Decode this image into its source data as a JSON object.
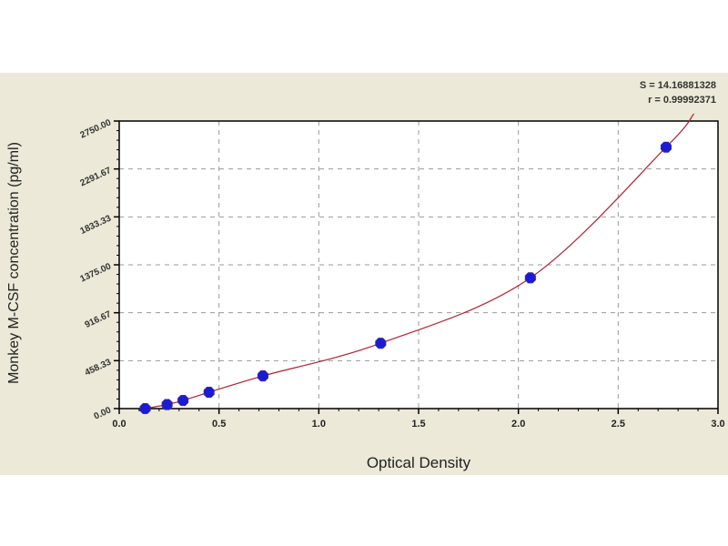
{
  "chart_data": {
    "type": "scatter",
    "title": "",
    "xlabel": "Optical Density",
    "ylabel": "Monkey M-CSF concentration (pg/ml)",
    "xlim": [
      0,
      3.0
    ],
    "ylim": [
      0,
      2750
    ],
    "x_ticks": [
      "0.0",
      "0.5",
      "1.0",
      "1.5",
      "2.0",
      "2.5",
      "3.0"
    ],
    "y_ticks": [
      "0.00",
      "458.33",
      "916.67",
      "1375.00",
      "1833.33",
      "2291.67",
      "2750.00"
    ],
    "grid": true,
    "points": {
      "x": [
        0.13,
        0.24,
        0.32,
        0.45,
        0.72,
        1.31,
        2.06,
        2.74
      ],
      "y": [
        0,
        39,
        78,
        156,
        312.5,
        625,
        1250,
        2500
      ]
    },
    "fit_curve": true,
    "annotations": [
      "S = 14.16881328",
      "r = 0.99992371"
    ],
    "colors": {
      "points": "#1a1ad8",
      "curve": "#b02030",
      "background": "#ECE9D8",
      "grid": "#999999"
    }
  }
}
